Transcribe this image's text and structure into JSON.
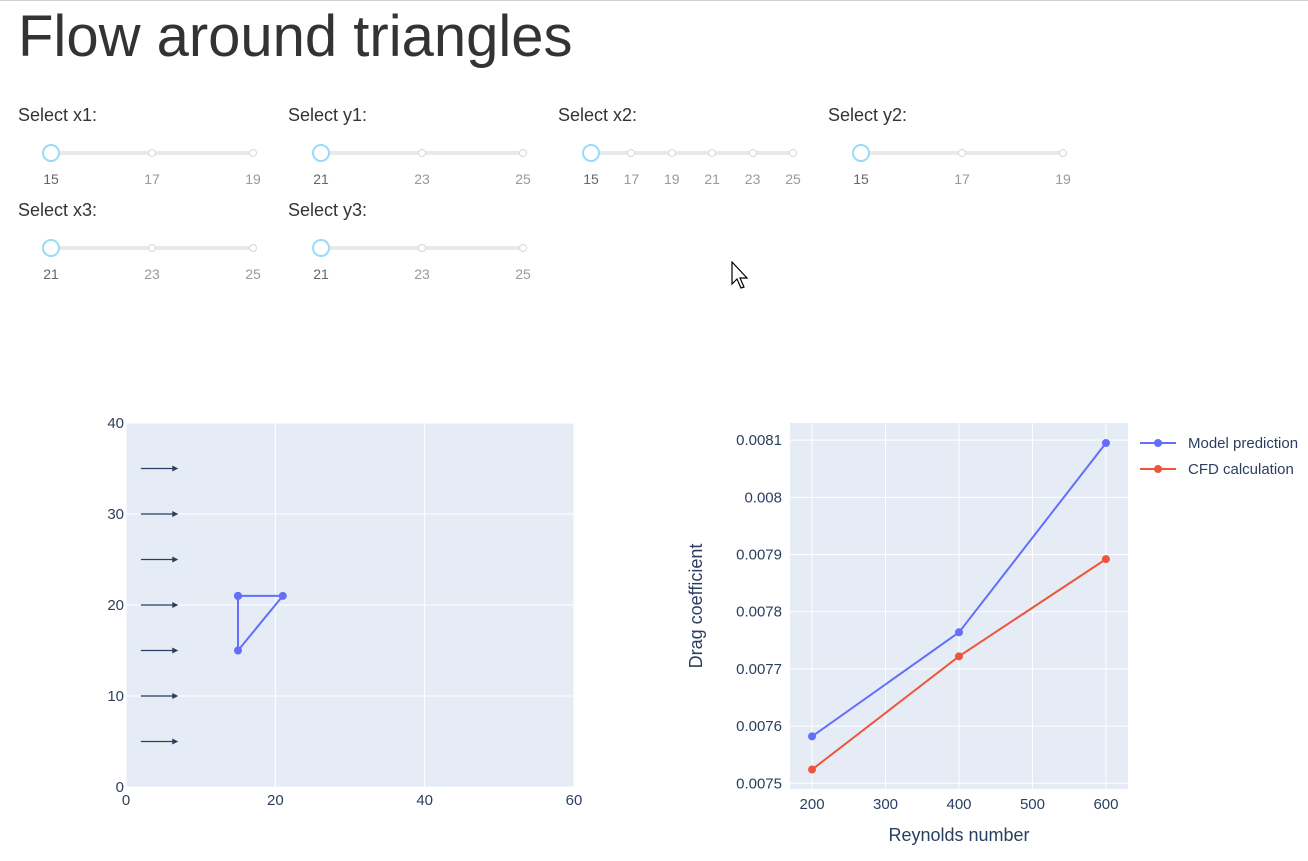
{
  "title": "Flow around triangles",
  "sliders": [
    {
      "label": "Select x1:",
      "marks": [
        "15",
        "17",
        "19"
      ],
      "value": "15"
    },
    {
      "label": "Select y1:",
      "marks": [
        "21",
        "23",
        "25"
      ],
      "value": "21"
    },
    {
      "label": "Select x2:",
      "marks": [
        "15",
        "17",
        "19",
        "21",
        "23",
        "25"
      ],
      "value": "15"
    },
    {
      "label": "Select y2:",
      "marks": [
        "15",
        "17",
        "19"
      ],
      "value": "15"
    },
    {
      "label": "Select x3:",
      "marks": [
        "21",
        "23",
        "25"
      ],
      "value": "21"
    },
    {
      "label": "Select y3:",
      "marks": [
        "21",
        "23",
        "25"
      ],
      "value": "21"
    }
  ],
  "colors": {
    "model": "#636efa",
    "cfd": "#ef553b",
    "plot_bg": "#e5ecf6",
    "axis_text": "#2a3f5f"
  },
  "chart_data": [
    {
      "type": "line",
      "title": "",
      "xlabel": "",
      "ylabel": "",
      "xlim": [
        0,
        60
      ],
      "ylim": [
        0,
        40
      ],
      "xticks": [
        "0",
        "20",
        "40",
        "60"
      ],
      "yticks": [
        "0",
        "10",
        "20",
        "30",
        "40"
      ],
      "grid": true,
      "series": [
        {
          "x": [
            15,
            21,
            15,
            15
          ],
          "y": [
            21,
            21,
            15,
            21
          ]
        }
      ],
      "arrows": [
        {
          "x0": 2,
          "x1": 7,
          "y": 5
        },
        {
          "x0": 2,
          "x1": 7,
          "y": 10
        },
        {
          "x0": 2,
          "x1": 7,
          "y": 15
        },
        {
          "x0": 2,
          "x1": 7,
          "y": 20
        },
        {
          "x0": 2,
          "x1": 7,
          "y": 25
        },
        {
          "x0": 2,
          "x1": 7,
          "y": 30
        },
        {
          "x0": 2,
          "x1": 7,
          "y": 35
        }
      ]
    },
    {
      "type": "line",
      "title": "",
      "xlabel": "Reynolds number",
      "ylabel": "Drag coefficient",
      "xlim": [
        170,
        630
      ],
      "ylim": [
        0.00749,
        0.00813
      ],
      "xticks": [
        "200",
        "300",
        "400",
        "500",
        "600"
      ],
      "yticks": [
        "0.0075",
        "0.0076",
        "0.0077",
        "0.0078",
        "0.0079",
        "0.008",
        "0.0081"
      ],
      "grid": true,
      "legend": "right",
      "x": [
        200,
        400,
        600
      ],
      "series": [
        {
          "name": "Model prediction",
          "values": [
            0.007582,
            0.007764,
            0.008095
          ]
        },
        {
          "name": "CFD calculation",
          "values": [
            0.007524,
            0.007722,
            0.007892
          ]
        }
      ]
    }
  ]
}
